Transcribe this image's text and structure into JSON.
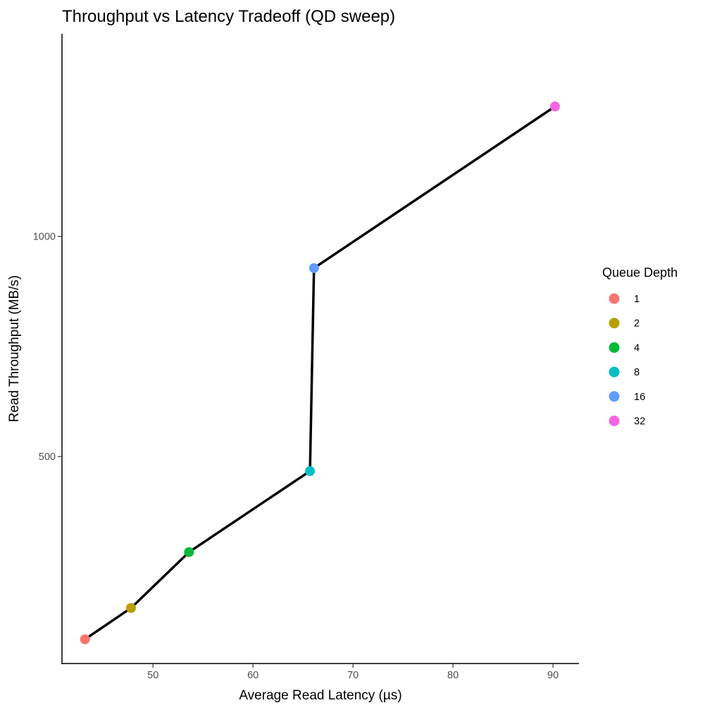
{
  "chart_data": {
    "type": "line",
    "title": "Throughput vs Latency Tradeoff (QD sweep)",
    "xlabel": "Average Read Latency (µs)",
    "ylabel": "Read Throughput (MB/s)",
    "xlim": [
      40.9,
      92.6
    ],
    "ylim": [
      30,
      1460
    ],
    "x_ticks": [
      50,
      60,
      70,
      80,
      90
    ],
    "y_ticks": [
      500,
      1000
    ],
    "grid": false,
    "line_color": "#000000",
    "legend": {
      "title": "Queue Depth",
      "position": "right"
    },
    "points": [
      {
        "qd": "1",
        "x": 43.2,
        "y": 85,
        "color": "#F8766D"
      },
      {
        "qd": "2",
        "x": 47.8,
        "y": 156,
        "color": "#B79F00"
      },
      {
        "qd": "4",
        "x": 53.6,
        "y": 283,
        "color": "#00BA38"
      },
      {
        "qd": "8",
        "x": 65.7,
        "y": 467,
        "color": "#00BFC4"
      },
      {
        "qd": "16",
        "x": 66.1,
        "y": 928,
        "color": "#619CFF"
      },
      {
        "qd": "32",
        "x": 90.2,
        "y": 1295,
        "color": "#F564E3"
      }
    ]
  }
}
